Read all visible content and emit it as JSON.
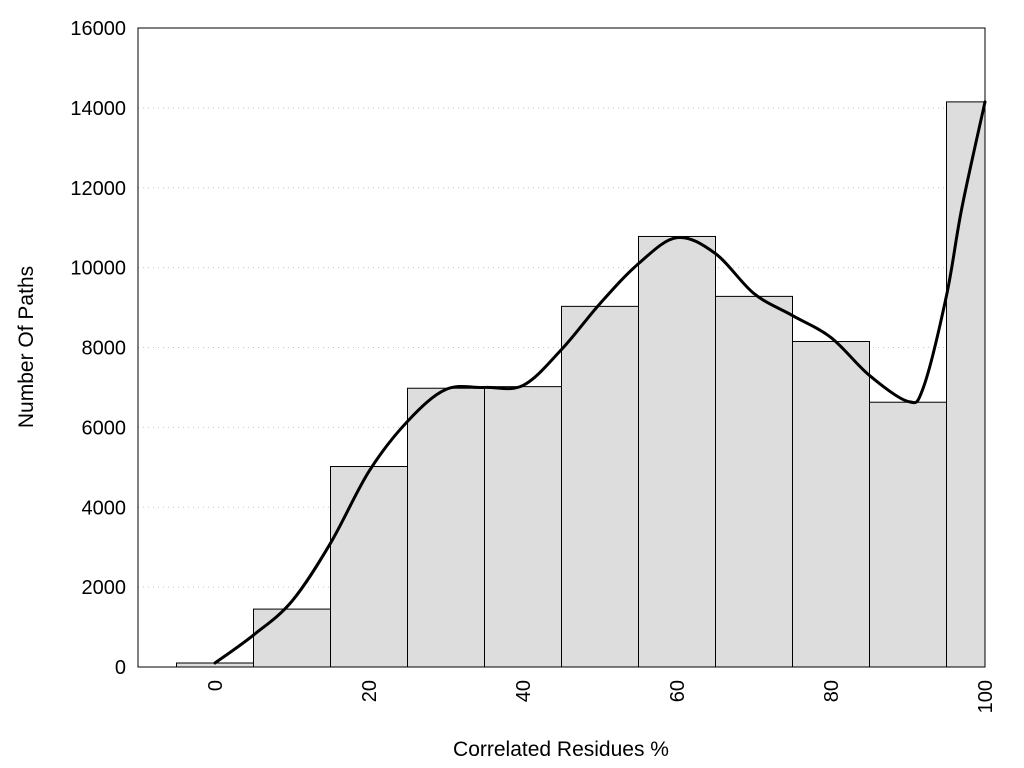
{
  "chart_data": {
    "type": "bar",
    "xlabel": "Correlated Residues %",
    "ylabel": "Number Of Paths",
    "x": [
      0,
      10,
      20,
      30,
      40,
      50,
      60,
      70,
      80,
      90,
      100
    ],
    "values": [
      100,
      1450,
      5020,
      6980,
      7020,
      9030,
      10780,
      9280,
      8150,
      6630,
      14150
    ],
    "bar_width": 10,
    "xlim": [
      -10,
      100
    ],
    "ylim": [
      0,
      16000
    ],
    "xticks": [
      0,
      20,
      40,
      60,
      80,
      100
    ],
    "xtick_labels": [
      "0",
      "20",
      "40",
      "60",
      "80",
      "100"
    ],
    "yticks": [
      0,
      2000,
      4000,
      6000,
      8000,
      10000,
      12000,
      14000,
      16000
    ],
    "ytick_labels": [
      "0",
      "2000",
      "4000",
      "6000",
      "8000",
      "10000",
      "12000",
      "14000",
      "16000"
    ],
    "grid": true,
    "curve": {
      "x": [
        0,
        5,
        10,
        15,
        20,
        25,
        30,
        35,
        40,
        45,
        50,
        55,
        60,
        65,
        70,
        75,
        80,
        85,
        90,
        92,
        95,
        97,
        100
      ],
      "y": [
        100,
        800,
        1650,
        3100,
        4900,
        6150,
        6950,
        7000,
        7050,
        7950,
        9100,
        10100,
        10750,
        10350,
        9350,
        8800,
        8250,
        7300,
        6650,
        7000,
        9300,
        11500,
        14150
      ]
    },
    "colors": {
      "bar_fill": "#dddddd",
      "bar_stroke": "#000000",
      "curve": "#000000",
      "grid": "#c8c8c8"
    }
  }
}
